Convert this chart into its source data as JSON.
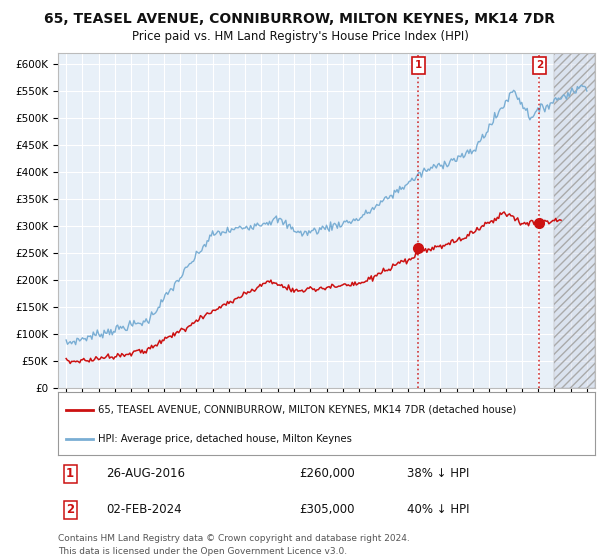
{
  "title": "65, TEASEL AVENUE, CONNIBURROW, MILTON KEYNES, MK14 7DR",
  "subtitle": "Price paid vs. HM Land Registry's House Price Index (HPI)",
  "bg_color": "#e8f0f8",
  "grid_color": "#ffffff",
  "hpi_color": "#7aaed4",
  "price_color": "#cc1111",
  "marker1_date_num": 2016.65,
  "marker1_price": 260000,
  "marker1_label": "26-AUG-2016",
  "marker1_amount": "£260,000",
  "marker1_pct": "38% ↓ HPI",
  "marker2_date_num": 2024.08,
  "marker2_price": 305000,
  "marker2_label": "02-FEB-2024",
  "marker2_amount": "£305,000",
  "marker2_pct": "40% ↓ HPI",
  "legend_line1": "65, TEASEL AVENUE, CONNIBURROW, MILTON KEYNES, MK14 7DR (detached house)",
  "legend_line2": "HPI: Average price, detached house, Milton Keynes",
  "footnote1": "Contains HM Land Registry data © Crown copyright and database right 2024.",
  "footnote2": "This data is licensed under the Open Government Licence v3.0.",
  "ylim": [
    0,
    620000
  ],
  "xlim": [
    1994.5,
    2027.5
  ],
  "hatch_start": 2025.0,
  "yticks": [
    0,
    50000,
    100000,
    150000,
    200000,
    250000,
    300000,
    350000,
    400000,
    450000,
    500000,
    550000,
    600000
  ],
  "ytick_labels": [
    "£0",
    "£50K",
    "£100K",
    "£150K",
    "£200K",
    "£250K",
    "£300K",
    "£350K",
    "£400K",
    "£450K",
    "£500K",
    "£550K",
    "£600K"
  ]
}
